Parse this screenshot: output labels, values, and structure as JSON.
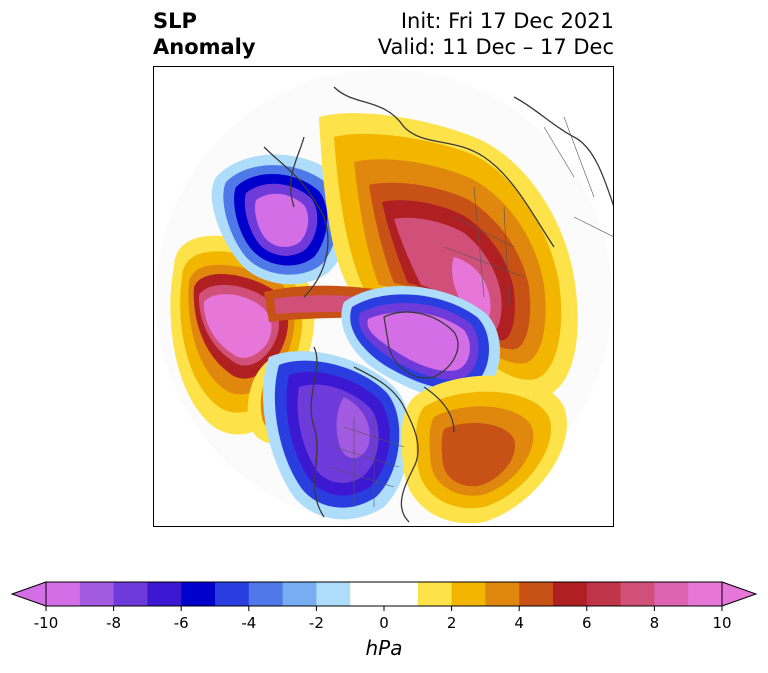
{
  "title": {
    "left_line1": "SLP",
    "left_line2": "Anomaly",
    "right_line1": "Init: Fri 17 Dec 2021",
    "right_line2": "Valid: 11 Dec – 17 Dec"
  },
  "colorbar": {
    "unit_label": "hPa",
    "ticks": [
      "-10",
      "-8",
      "-6",
      "-4",
      "-2",
      "0",
      "2",
      "4",
      "6",
      "8",
      "10"
    ],
    "colors": [
      "#d36ee6",
      "#a25ae0",
      "#6e3ad9",
      "#3c18d2",
      "#0000cc",
      "#2a3ee0",
      "#4f79e8",
      "#77adf2",
      "#aedcfb",
      "#ffffff",
      "#ffffff",
      "#fde24a",
      "#f2b600",
      "#e0880e",
      "#c85216",
      "#b01f22",
      "#c0344a",
      "#d0507a",
      "#dc64b0",
      "#e676d8"
    ]
  },
  "map": {
    "projection": "north-polar-stereographic",
    "anomalies": [
      {
        "region": "north-pacific",
        "sign": "positive",
        "peak_hpa": 10
      },
      {
        "region": "alaska-western-canada",
        "sign": "negative",
        "peak_hpa": -10
      },
      {
        "region": "eastern-siberia",
        "sign": "negative",
        "peak_hpa": -10
      },
      {
        "region": "arctic-siberia-scandinavia",
        "sign": "positive",
        "peak_hpa": 10
      },
      {
        "region": "greenland-north-atlantic",
        "sign": "negative",
        "peak_hpa": -10
      },
      {
        "region": "western-atlantic",
        "sign": "positive",
        "peak_hpa": 6
      }
    ]
  }
}
